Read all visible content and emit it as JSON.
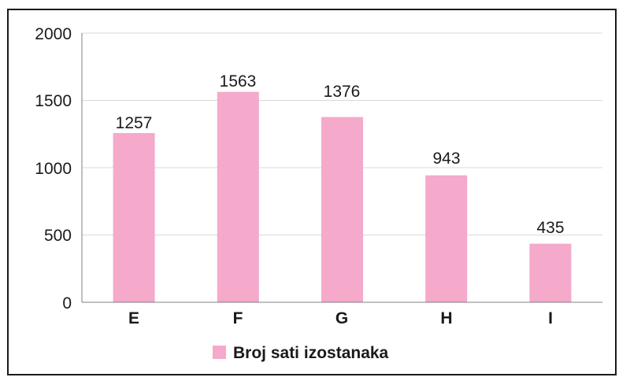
{
  "chart_data": {
    "type": "bar",
    "categories": [
      "E",
      "F",
      "G",
      "H",
      "I"
    ],
    "series": [
      {
        "name": "Broj sati izostanaka",
        "values": [
          1257,
          1563,
          1376,
          943,
          435
        ]
      }
    ],
    "data_labels": [
      "1257",
      "1563",
      "1376",
      "943",
      "435"
    ],
    "yticks": [
      "0",
      "500",
      "1000",
      "1500",
      "2000"
    ],
    "ylim": [
      0,
      2000
    ],
    "title": "",
    "xlabel": "",
    "ylabel": "",
    "grid": true,
    "legend_position": "bottom",
    "colors": {
      "bar": "#f5a9cb",
      "grid": "#d9d9d9",
      "axis": "#808080"
    }
  }
}
